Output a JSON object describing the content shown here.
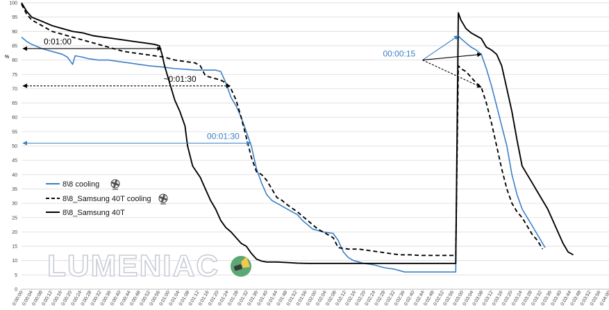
{
  "watermark": "LUMENIAC",
  "colors": {
    "blue": "#3b7fc4",
    "black": "#000000",
    "grid": "#d9d9d9",
    "axis": "#bfbfbf",
    "logo_circle": "#5aa874",
    "logo_body": "#3a3a3a",
    "logo_beam": "#f2c94c"
  },
  "icons": {
    "fan": "fan-icon",
    "logo": "flashlight-logo-icon"
  },
  "chart_data": {
    "type": "line",
    "ylabel": "%",
    "xlabel": "",
    "ylim": [
      0,
      100
    ],
    "yticks": [
      0,
      5,
      10,
      15,
      20,
      25,
      30,
      35,
      40,
      45,
      50,
      55,
      60,
      65,
      70,
      75,
      80,
      85,
      90,
      95,
      100
    ],
    "xlim_seconds": [
      0,
      230
    ],
    "xtick_labels": [
      "0:00:00",
      "0:00:04",
      "0:00:08",
      "0:00:12",
      "0:00:16",
      "0:00:20",
      "0:00:24",
      "0:00:28",
      "0:00:32",
      "0:00:36",
      "0:00:40",
      "0:00:44",
      "0:00:48",
      "0:00:52",
      "0:00:56",
      "0:01:00",
      "0:01:04",
      "0:01:08",
      "0:01:12",
      "0:01:16",
      "0:01:20",
      "0:01:24",
      "0:01:28",
      "0:01:32",
      "0:01:36",
      "0:01:40",
      "0:01:44",
      "0:01:48",
      "0:01:52",
      "0:01:56",
      "0:02:00",
      "0:02:04",
      "0:02:08",
      "0:02:12",
      "0:02:16",
      "0:02:20",
      "0:02:24",
      "0:02:28",
      "0:02:32",
      "0:02:36",
      "0:02:40",
      "0:02:44",
      "0:02:48",
      "0:02:52",
      "0:02:56",
      "0:03:00",
      "0:03:04",
      "0:03:08",
      "0:03:12",
      "0:03:16",
      "0:03:20",
      "0:03:24",
      "0:03:28",
      "0:03:32",
      "0:03:36",
      "0:03:40",
      "0:03:44",
      "0:03:48",
      "0:03:52",
      "0:03:56",
      "0:04:00"
    ],
    "series": [
      {
        "name": "8\\8 cooling",
        "color": "#3b7fc4",
        "dash": "solid",
        "icon": "fan-icon",
        "points": [
          [
            0,
            88
          ],
          [
            2,
            86.5
          ],
          [
            4,
            85.5
          ],
          [
            8,
            84
          ],
          [
            12,
            83
          ],
          [
            16,
            82
          ],
          [
            18,
            81
          ],
          [
            20,
            78.5
          ],
          [
            21,
            81.5
          ],
          [
            24,
            81
          ],
          [
            26,
            80.5
          ],
          [
            30,
            80
          ],
          [
            34,
            80
          ],
          [
            38,
            79.5
          ],
          [
            42,
            79
          ],
          [
            46,
            78.5
          ],
          [
            50,
            78
          ],
          [
            56,
            77.5
          ],
          [
            60,
            77
          ],
          [
            64,
            76.8
          ],
          [
            68,
            76.5
          ],
          [
            72,
            76.5
          ],
          [
            76,
            76.5
          ],
          [
            78,
            76
          ],
          [
            80,
            72
          ],
          [
            82,
            67
          ],
          [
            84,
            64
          ],
          [
            86,
            60
          ],
          [
            88,
            55
          ],
          [
            90,
            50
          ],
          [
            92,
            42
          ],
          [
            94,
            37
          ],
          [
            96,
            33
          ],
          [
            98,
            31
          ],
          [
            100,
            30
          ],
          [
            102,
            29
          ],
          [
            104,
            28
          ],
          [
            108,
            26
          ],
          [
            110,
            24
          ],
          [
            114,
            21
          ],
          [
            118,
            20
          ],
          [
            122,
            19.5
          ],
          [
            124,
            17
          ],
          [
            126,
            13
          ],
          [
            128,
            11
          ],
          [
            130,
            10
          ],
          [
            134,
            9
          ],
          [
            138,
            8.5
          ],
          [
            140,
            8
          ],
          [
            142,
            7.5
          ],
          [
            146,
            7
          ],
          [
            148,
            6.5
          ],
          [
            150,
            6
          ],
          [
            154,
            6
          ],
          [
            160,
            6
          ],
          [
            164,
            6
          ],
          [
            169,
            6
          ],
          [
            170,
            6
          ],
          [
            171,
            88.5
          ],
          [
            172,
            87.5
          ],
          [
            174,
            86
          ],
          [
            176,
            84.5
          ],
          [
            178,
            83.5
          ],
          [
            180,
            82
          ],
          [
            182,
            77
          ],
          [
            184,
            71
          ],
          [
            186,
            64
          ],
          [
            188,
            57
          ],
          [
            190,
            50
          ],
          [
            192,
            40
          ],
          [
            194,
            33
          ],
          [
            196,
            28
          ],
          [
            198,
            25
          ],
          [
            200,
            22
          ],
          [
            202,
            19
          ],
          [
            204,
            16
          ],
          [
            205,
            14.5
          ]
        ]
      },
      {
        "name": "8\\8_Samsung 40T cooling",
        "color": "#000000",
        "dash": "dashed",
        "icon": "fan-icon",
        "points": [
          [
            0,
            99.5
          ],
          [
            2,
            96
          ],
          [
            4,
            94
          ],
          [
            8,
            92
          ],
          [
            12,
            90
          ],
          [
            16,
            89
          ],
          [
            20,
            88
          ],
          [
            24,
            87
          ],
          [
            28,
            86
          ],
          [
            32,
            85
          ],
          [
            36,
            84
          ],
          [
            40,
            83
          ],
          [
            44,
            82.5
          ],
          [
            48,
            82
          ],
          [
            52,
            81.5
          ],
          [
            56,
            81
          ],
          [
            60,
            80
          ],
          [
            64,
            79.5
          ],
          [
            68,
            79
          ],
          [
            70,
            78
          ],
          [
            72,
            74.5
          ],
          [
            74,
            74
          ],
          [
            76,
            73.5
          ],
          [
            78,
            73
          ],
          [
            80,
            72
          ],
          [
            82,
            70
          ],
          [
            84,
            66
          ],
          [
            86,
            60
          ],
          [
            88,
            53
          ],
          [
            90,
            46
          ],
          [
            92,
            41
          ],
          [
            94,
            40
          ],
          [
            96,
            38
          ],
          [
            98,
            35
          ],
          [
            100,
            32
          ],
          [
            102,
            31
          ],
          [
            104,
            29.5
          ],
          [
            108,
            27
          ],
          [
            112,
            24
          ],
          [
            116,
            21
          ],
          [
            120,
            19
          ],
          [
            122,
            18
          ],
          [
            124,
            14.5
          ],
          [
            128,
            14
          ],
          [
            132,
            14
          ],
          [
            136,
            13.5
          ],
          [
            140,
            13
          ],
          [
            144,
            12.5
          ],
          [
            148,
            12
          ],
          [
            152,
            12
          ],
          [
            156,
            11.8
          ],
          [
            160,
            11.8
          ],
          [
            164,
            11.8
          ],
          [
            169,
            11.8
          ],
          [
            170,
            11.8
          ],
          [
            171,
            78
          ],
          [
            172,
            77
          ],
          [
            174,
            76
          ],
          [
            176,
            74
          ],
          [
            178,
            72
          ],
          [
            180,
            70.5
          ],
          [
            182,
            65
          ],
          [
            184,
            58
          ],
          [
            186,
            50
          ],
          [
            188,
            42
          ],
          [
            190,
            35
          ],
          [
            192,
            30
          ],
          [
            194,
            27
          ],
          [
            196,
            25
          ],
          [
            198,
            22
          ],
          [
            200,
            19
          ],
          [
            202,
            17
          ],
          [
            204,
            14
          ]
        ]
      },
      {
        "name": "8\\8_Samsung 40T",
        "color": "#000000",
        "dash": "solid",
        "icon": "",
        "points": [
          [
            0,
            100
          ],
          [
            2,
            97
          ],
          [
            4,
            95
          ],
          [
            8,
            93.5
          ],
          [
            12,
            92
          ],
          [
            16,
            91
          ],
          [
            20,
            90
          ],
          [
            24,
            89.5
          ],
          [
            28,
            88.5
          ],
          [
            32,
            88
          ],
          [
            36,
            87.5
          ],
          [
            40,
            87
          ],
          [
            44,
            86.5
          ],
          [
            48,
            86
          ],
          [
            52,
            85.5
          ],
          [
            54,
            85
          ],
          [
            55,
            82
          ],
          [
            56,
            78
          ],
          [
            58,
            72
          ],
          [
            60,
            66
          ],
          [
            62,
            62
          ],
          [
            64,
            57
          ],
          [
            65,
            50
          ],
          [
            67,
            43
          ],
          [
            70,
            39
          ],
          [
            72,
            35
          ],
          [
            74,
            31
          ],
          [
            76,
            28
          ],
          [
            78,
            24
          ],
          [
            80,
            21.5
          ],
          [
            82,
            20
          ],
          [
            84,
            18
          ],
          [
            86,
            16
          ],
          [
            88,
            15
          ],
          [
            90,
            12.5
          ],
          [
            92,
            10.5
          ],
          [
            94,
            9.8
          ],
          [
            96,
            9.5
          ],
          [
            100,
            9.5
          ],
          [
            104,
            9.3
          ],
          [
            108,
            9.1
          ],
          [
            112,
            9
          ],
          [
            120,
            9
          ],
          [
            130,
            9
          ],
          [
            140,
            9
          ],
          [
            150,
            9
          ],
          [
            160,
            9
          ],
          [
            169,
            9
          ],
          [
            170,
            9
          ],
          [
            171,
            96.5
          ],
          [
            172,
            94
          ],
          [
            174,
            91
          ],
          [
            176,
            89.5
          ],
          [
            178,
            88.5
          ],
          [
            180,
            87.5
          ],
          [
            182,
            84.5
          ],
          [
            184,
            83.5
          ],
          [
            186,
            82
          ],
          [
            188,
            78
          ],
          [
            190,
            70
          ],
          [
            192,
            62
          ],
          [
            194,
            52
          ],
          [
            196,
            43
          ],
          [
            198,
            40
          ],
          [
            200,
            37
          ],
          [
            202,
            34
          ],
          [
            204,
            31
          ],
          [
            206,
            28
          ],
          [
            208,
            24
          ],
          [
            210,
            20
          ],
          [
            212,
            16
          ],
          [
            214,
            13
          ],
          [
            216,
            12
          ]
        ]
      }
    ],
    "annotations": [
      {
        "label": "0:01:00",
        "color": "#000000",
        "style": "solid",
        "y": 84,
        "x_from": 0,
        "x_to": 55
      },
      {
        "label": "~0:01:30",
        "color": "#000000",
        "style": "dashed",
        "y": 71,
        "x_from": 0,
        "x_to": 82
      },
      {
        "label": "00:01:30",
        "color": "#3b7fc4",
        "style": "solid",
        "y": 51,
        "x_from": 0,
        "x_to": 90
      },
      {
        "label": "00:00:15",
        "color": "#3b7fc4",
        "style": "fan",
        "y": 80,
        "x": 157,
        "targets": [
          [
            171,
            88.5
          ],
          [
            180,
            82
          ],
          [
            180,
            70.5
          ]
        ],
        "target_styles": [
          "blue",
          "black",
          "dashed"
        ]
      }
    ],
    "legend_position": "bottom-left",
    "grid": true
  }
}
